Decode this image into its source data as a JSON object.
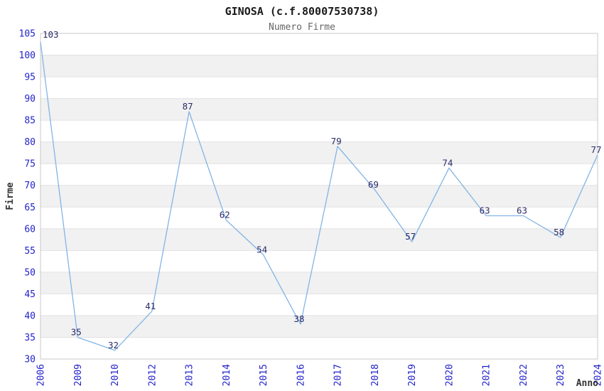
{
  "chart_data": {
    "type": "line",
    "title": "GINOSA (c.f.80007530738)",
    "subtitle": "Numero Firme",
    "xlabel": "Anno",
    "ylabel": "Firme",
    "categories": [
      "2006",
      "2009",
      "2010",
      "2012",
      "2013",
      "2014",
      "2015",
      "2016",
      "2017",
      "2018",
      "2019",
      "2020",
      "2021",
      "2022",
      "2023",
      "2024"
    ],
    "values": [
      103,
      35,
      32,
      41,
      87,
      62,
      54,
      38,
      79,
      69,
      57,
      74,
      63,
      63,
      58,
      77
    ],
    "ylim": [
      30,
      105
    ],
    "ytick_step": 5,
    "grid": "horizontal-bands-and-lines",
    "legend": "none",
    "data_labels_shown": true,
    "colors": {
      "line": "#82b4e6",
      "tick_label": "#2222cc",
      "data_label": "#2b2b6b",
      "band_gray": "#f1f1f1",
      "band_white": "#ffffff",
      "grid_line": "#e2e2e2",
      "plot_border": "#c9c9c9",
      "title": "#1a1a1a",
      "subtitle": "#666666",
      "axis_title": "#333333",
      "background": "#ffffff"
    }
  }
}
